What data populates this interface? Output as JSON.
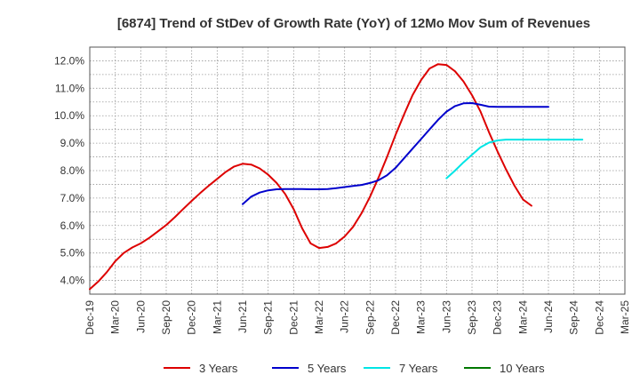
{
  "chart_data": {
    "type": "line",
    "title": "[6874]  Trend of StDev of Growth Rate (YoY) of 12Mo Mov Sum of Revenues",
    "xlabel": "",
    "ylabel": "",
    "x_ticks": [
      "Dec-19",
      "Mar-20",
      "Jun-20",
      "Sep-20",
      "Dec-20",
      "Mar-21",
      "Jun-21",
      "Sep-21",
      "Dec-21",
      "Mar-22",
      "Jun-22",
      "Sep-22",
      "Dec-22",
      "Mar-23",
      "Jun-23",
      "Sep-23",
      "Dec-23",
      "Mar-24",
      "Jun-24",
      "Sep-24",
      "Dec-24",
      "Mar-25"
    ],
    "y_ticks": [
      "4.0%",
      "5.0%",
      "6.0%",
      "7.0%",
      "8.0%",
      "9.0%",
      "10.0%",
      "11.0%",
      "12.0%"
    ],
    "ylim": [
      3.5,
      12.5
    ],
    "grid": true,
    "legend_position": "bottom",
    "series": [
      {
        "name": "3 Years",
        "color": "#dd0000",
        "start_month": 0,
        "values": [
          3.68,
          3.96,
          4.3,
          4.7,
          5.0,
          5.2,
          5.35,
          5.55,
          5.78,
          6.02,
          6.3,
          6.6,
          6.9,
          7.18,
          7.45,
          7.7,
          7.95,
          8.15,
          8.25,
          8.22,
          8.08,
          7.85,
          7.55,
          7.15,
          6.6,
          5.9,
          5.35,
          5.18,
          5.22,
          5.35,
          5.6,
          5.95,
          6.45,
          7.05,
          7.75,
          8.5,
          9.3,
          10.05,
          10.75,
          11.3,
          11.72,
          11.88,
          11.85,
          11.62,
          11.25,
          10.75,
          10.15,
          9.4,
          8.7,
          8.05,
          7.45,
          6.95,
          6.72
        ]
      },
      {
        "name": "5 Years",
        "color": "#0000cc",
        "start_month": 18,
        "values": [
          6.78,
          7.05,
          7.2,
          7.28,
          7.32,
          7.33,
          7.33,
          7.33,
          7.32,
          7.32,
          7.33,
          7.36,
          7.4,
          7.44,
          7.48,
          7.55,
          7.65,
          7.83,
          8.1,
          8.45,
          8.8,
          9.15,
          9.5,
          9.85,
          10.15,
          10.35,
          10.45,
          10.46,
          10.4,
          10.33,
          10.32,
          10.32,
          10.32,
          10.32,
          10.32,
          10.32,
          10.32
        ]
      },
      {
        "name": "7 Years",
        "color": "#00e5e5",
        "start_month": 42,
        "values": [
          7.72,
          8.0,
          8.3,
          8.58,
          8.85,
          9.02,
          9.1,
          9.13,
          9.13,
          9.13,
          9.13,
          9.13,
          9.13,
          9.13,
          9.13,
          9.13,
          9.13
        ]
      },
      {
        "name": "10 Years",
        "color": "#007700",
        "start_month": 0,
        "values": []
      }
    ]
  }
}
